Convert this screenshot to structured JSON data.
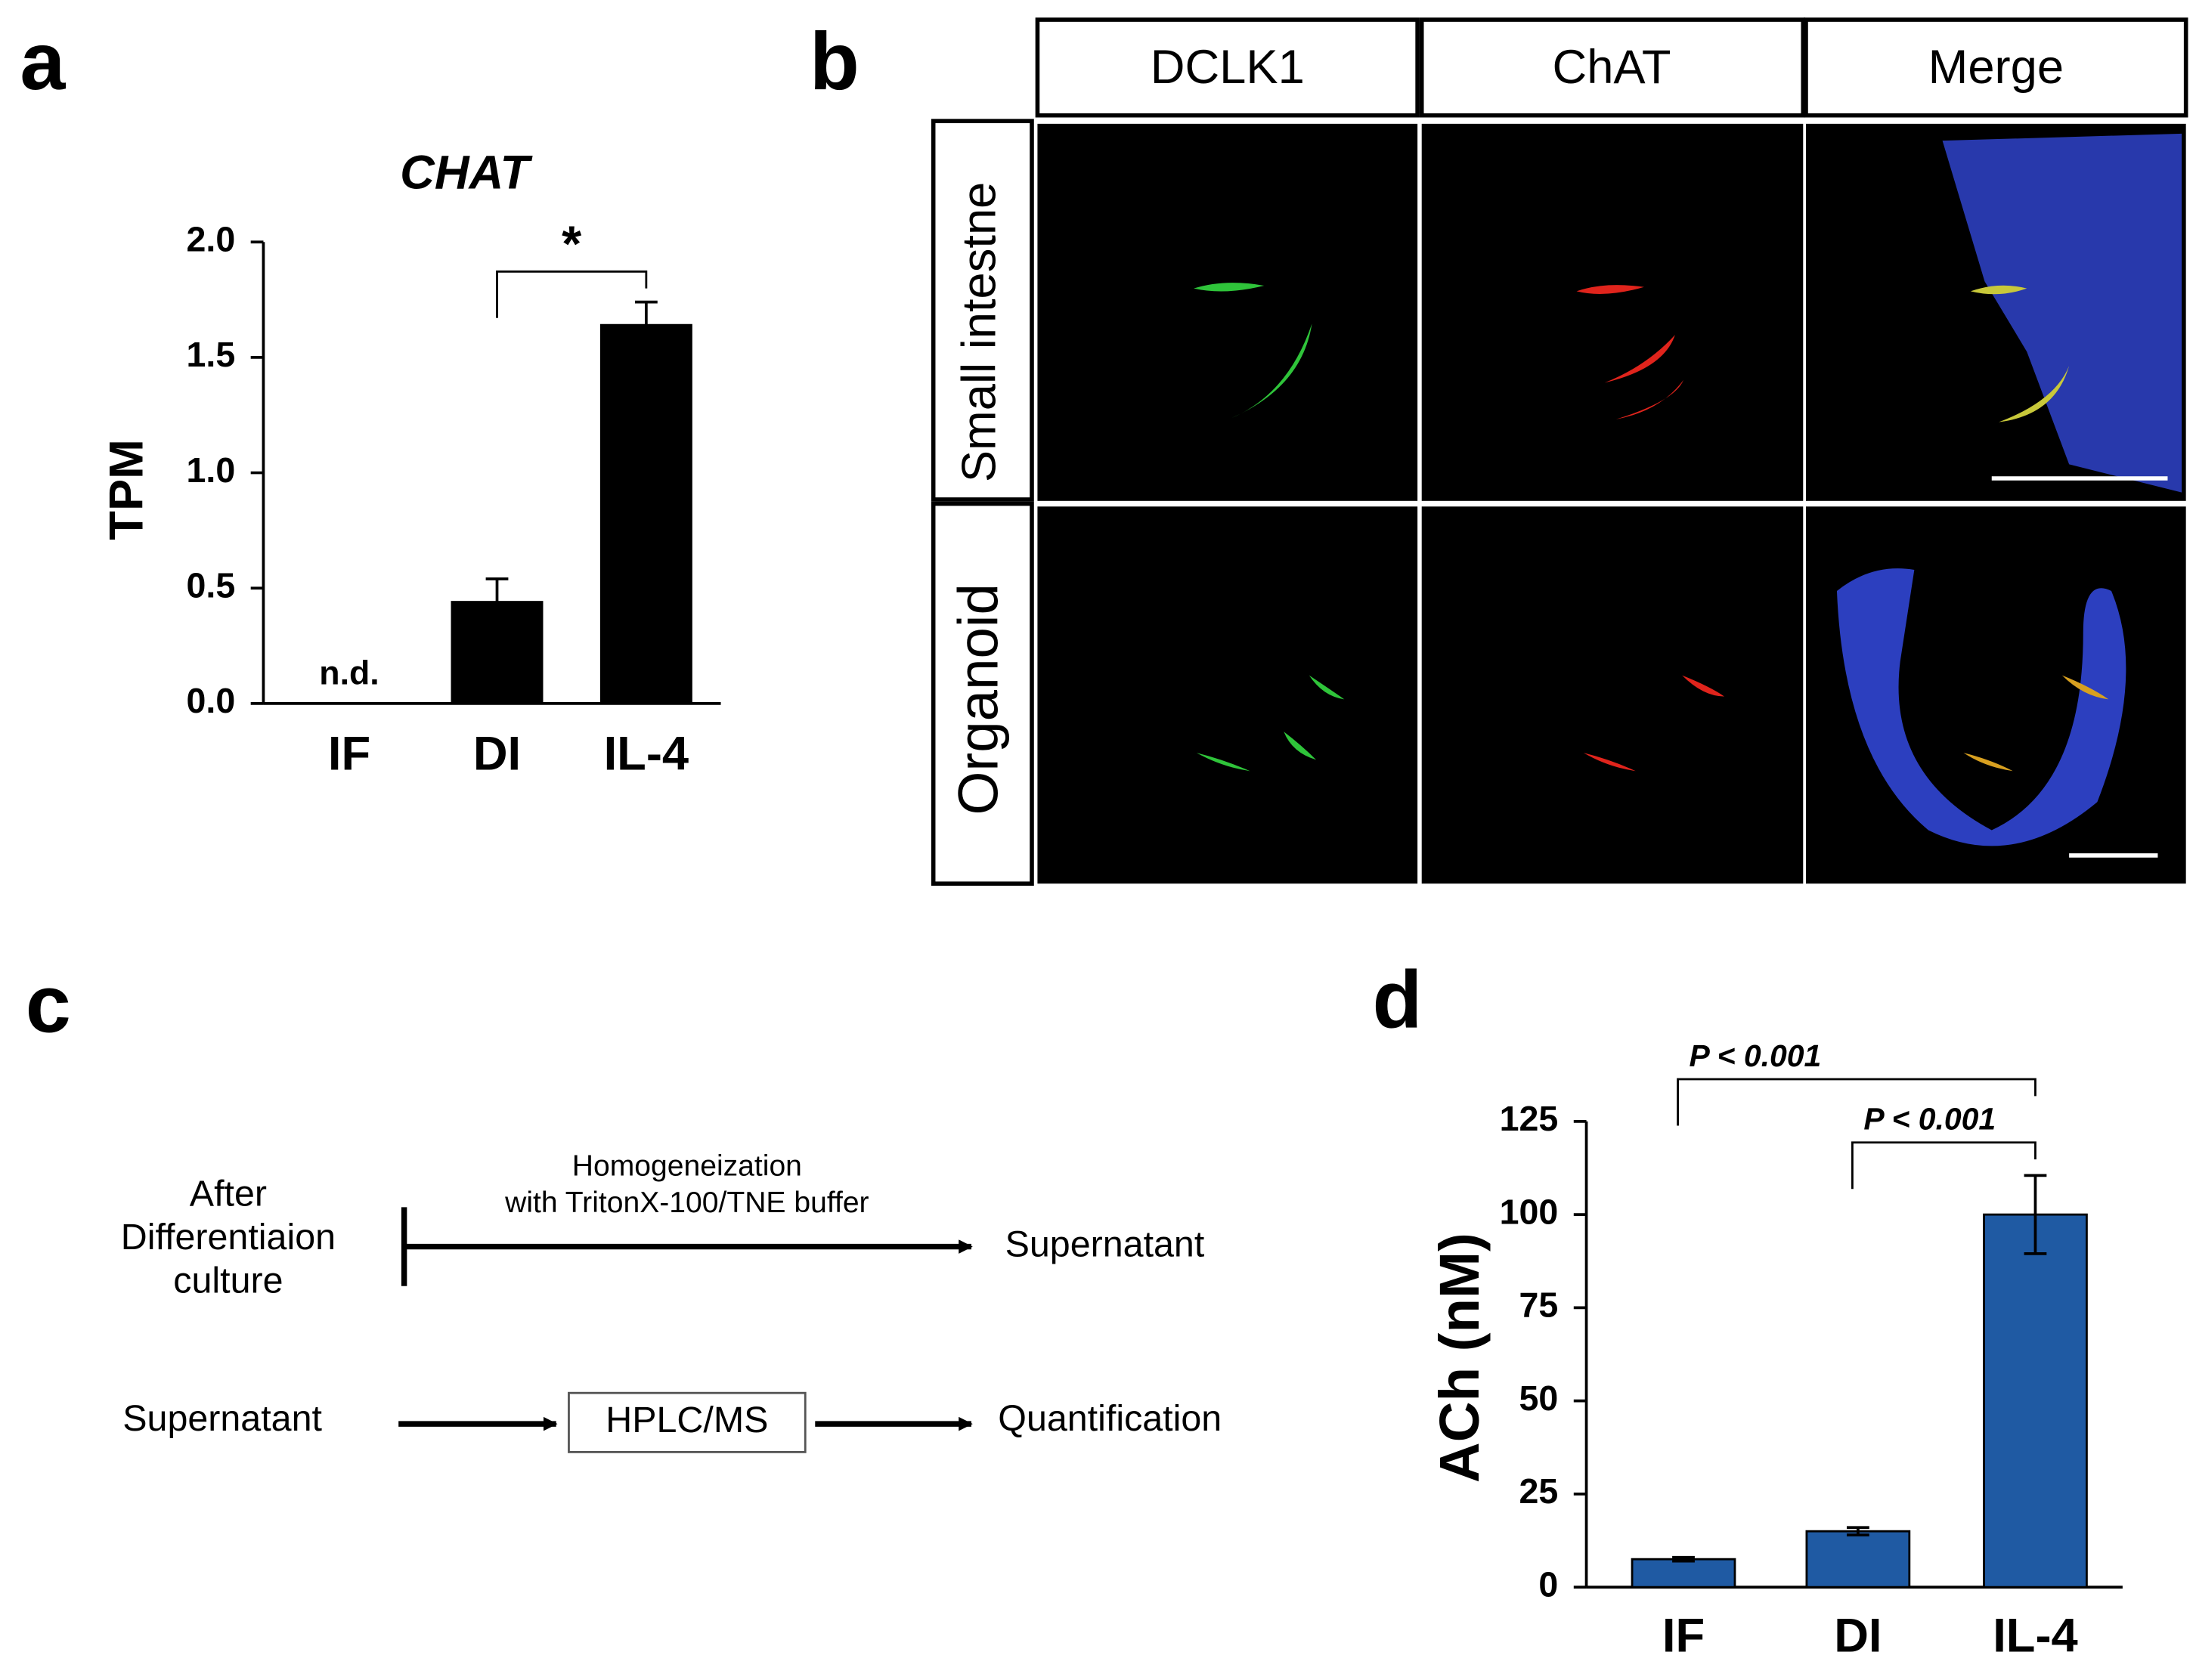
{
  "panel_labels": [
    "a",
    "b",
    "c",
    "d"
  ],
  "chart_data": [
    {
      "type": "bar",
      "title": "CHAT",
      "y_label": "TPM",
      "categories": [
        "IF",
        "DI",
        "IL-4"
      ],
      "values": [
        null,
        0.44,
        1.64
      ],
      "errors": [
        null,
        0.1,
        0.1
      ],
      "value_labels": [
        "n.d.",
        null,
        null
      ],
      "color": "#000000",
      "ylim": [
        0,
        2
      ],
      "yticks": [
        {
          "value": 0,
          "label": "0.0"
        },
        0.5,
        {
          "value": 1,
          "label": "1.0"
        },
        1.5,
        {
          "value": 2,
          "label": "2.0"
        }
      ],
      "significance": [
        {
          "label": "*",
          "pair": [
            1,
            2
          ]
        }
      ]
    },
    {
      "type": "bar",
      "y_label": "ACh (nM)",
      "categories": [
        "IF",
        "DI",
        "IL-4"
      ],
      "values": [
        7.5,
        15,
        100
      ],
      "errors": [
        0.5,
        1,
        10.5
      ],
      "color": "#1f5aa3",
      "ylim": [
        0,
        125
      ],
      "yticks": [
        0,
        25,
        50,
        75,
        100,
        125
      ],
      "significance": [
        {
          "label": "P < 0.001",
          "pair": [
            0,
            2
          ]
        },
        {
          "label": "P < 0.001",
          "pair": [
            1,
            2
          ]
        }
      ]
    }
  ],
  "panel_b": {
    "columns": [
      "DCLK1",
      "ChAT",
      "Merge"
    ],
    "rows": [
      "Small intestne",
      "Organoid"
    ]
  },
  "panel_c": {
    "start": [
      "After",
      "Differentiaion",
      "culture"
    ],
    "step1": [
      "Homogeneization",
      "with TritonX-100/TNE buffer"
    ],
    "result1": "Supernatant",
    "input2": "Supernatant",
    "step2": "HPLC/MS",
    "result2": "Quantification"
  }
}
